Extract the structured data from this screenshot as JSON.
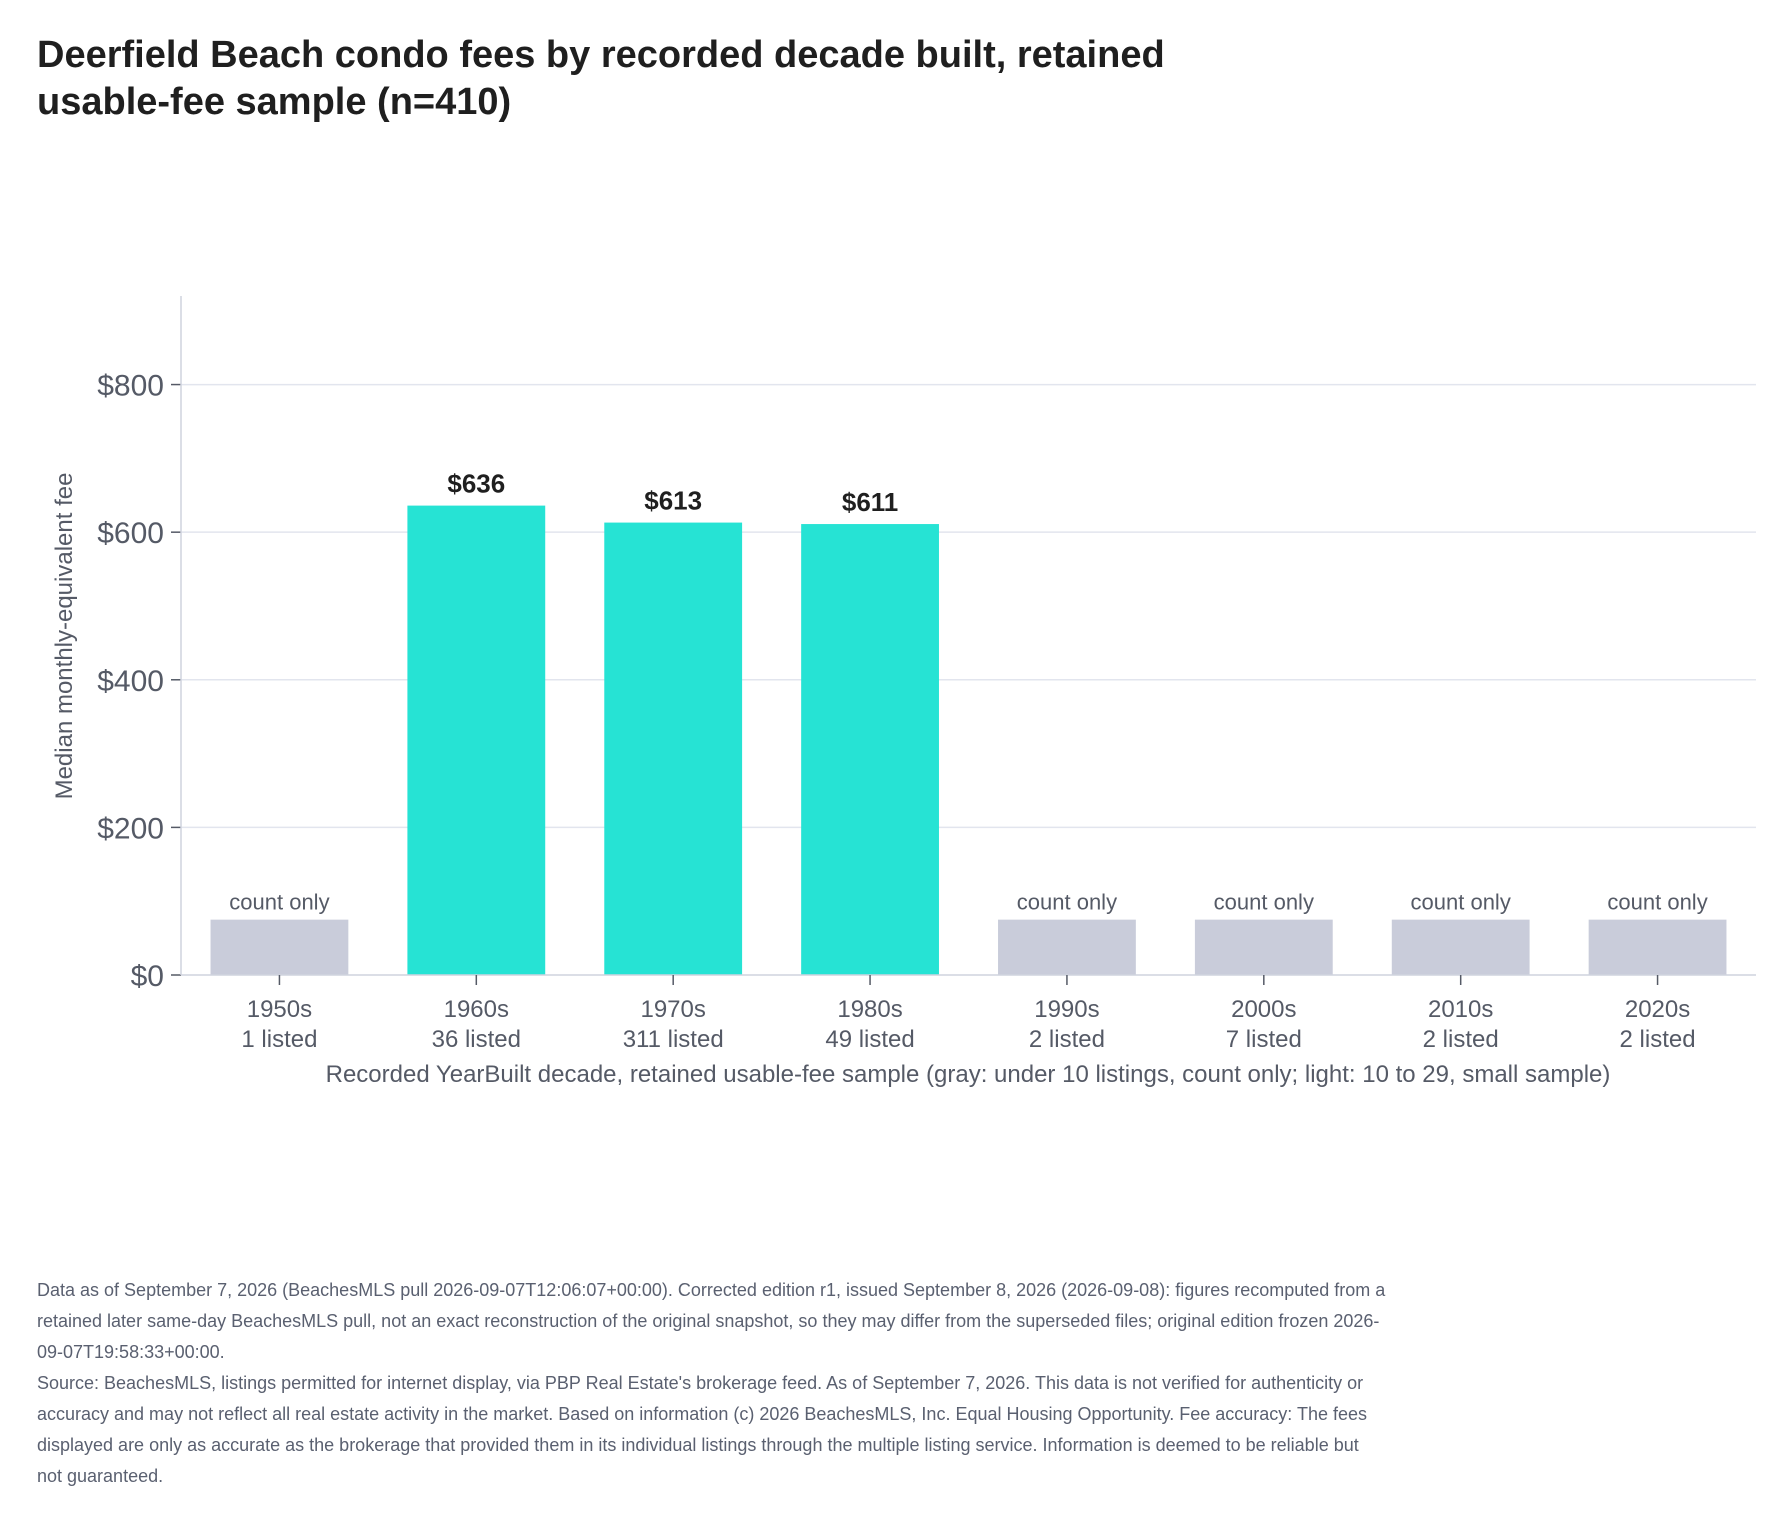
{
  "title": "Deerfield Beach condo fees by recorded decade built, retained usable-fee sample (n=410)",
  "chart_data": {
    "type": "bar",
    "title": "Deerfield Beach condo fees by recorded decade built, retained usable-fee sample (n=410)",
    "ylabel": "Median monthly-equivalent fee",
    "xlabel": "Recorded YearBuilt decade, retained usable-fee sample (gray: under 10 listings, count only; light: 10 to 29, small sample)",
    "ylim": [
      0,
      920
    ],
    "yticks": [
      0,
      200,
      400,
      600,
      800
    ],
    "ytick_labels": [
      "$0",
      "$200",
      "$400",
      "$600",
      "$800"
    ],
    "grid": true,
    "placeholder_value": 75,
    "categories": [
      "1950s",
      "1960s",
      "1970s",
      "1980s",
      "1990s",
      "2000s",
      "2010s",
      "2020s"
    ],
    "counts": [
      "1 listed",
      "36 listed",
      "311 listed",
      "49 listed",
      "2 listed",
      "7 listed",
      "2 listed",
      "2 listed"
    ],
    "values": [
      null,
      636,
      613,
      611,
      null,
      null,
      null,
      null
    ],
    "value_labels": [
      "count only",
      "$636",
      "$613",
      "$611",
      "count only",
      "count only",
      "count only",
      "count only"
    ],
    "count_only": [
      true,
      false,
      false,
      false,
      true,
      true,
      true,
      true
    ],
    "colors": {
      "bar": "#26e3d4",
      "count_only": "#c9ccda",
      "grid": "#e2e5ee",
      "axis": "#cfd3de"
    }
  },
  "notes": [
    "Data as of September 7, 2026 (BeachesMLS pull 2026-09-07T12:06:07+00:00). Corrected edition r1, issued September 8, 2026 (2026-09-08): figures recomputed from a retained later same-day BeachesMLS pull, not an exact reconstruction of the original snapshot, so they may differ from the superseded files; original edition frozen 2026-09-07T19:58:33+00:00.",
    "Source: BeachesMLS, listings permitted for internet display, via PBP Real Estate's brokerage feed. As of September 7, 2026. This data is not verified for authenticity or accuracy and may not reflect all real estate activity in the market. Based on information (c) 2026 BeachesMLS, Inc. Equal Housing Opportunity. Fee accuracy: The fees displayed are only as accurate as the brokerage that provided them in its individual listings through the multiple listing service. Information is deemed to be reliable but not guaranteed."
  ]
}
